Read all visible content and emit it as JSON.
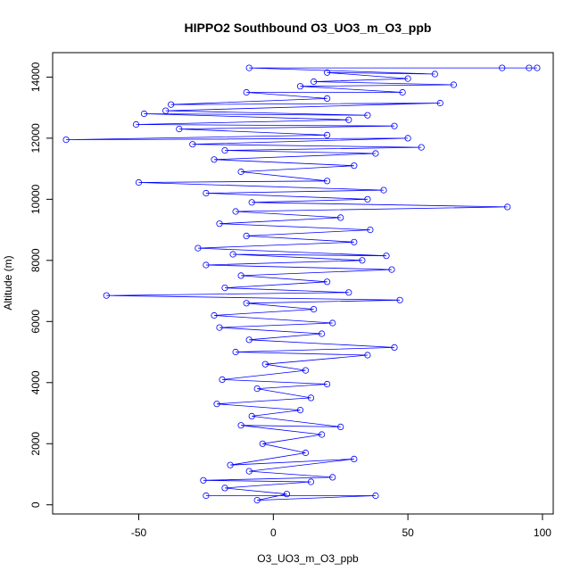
{
  "chart_data": {
    "type": "scatter",
    "title": "HIPPO2 Southbound O3_UO3_m_O3_ppb",
    "xlabel": "O3_UO3_m_O3_ppb",
    "ylabel": "Altitude (m)",
    "xlim": [
      -82,
      104
    ],
    "ylim": [
      -300,
      14800
    ],
    "xticks": [
      -50,
      0,
      50,
      100
    ],
    "yticks": [
      0,
      2000,
      4000,
      6000,
      8000,
      10000,
      12000,
      14000
    ],
    "grid": false,
    "legend": "none",
    "marker": "open-circle",
    "line": true,
    "color": "#0000ff",
    "series": [
      {
        "values": [
          [
            -25,
            300
          ],
          [
            38,
            300
          ],
          [
            -6,
            150
          ],
          [
            5,
            350
          ],
          [
            -18,
            550
          ],
          [
            14,
            750
          ],
          [
            -26,
            800
          ],
          [
            22,
            900
          ],
          [
            -9,
            1100
          ],
          [
            30,
            1500
          ],
          [
            -16,
            1300
          ],
          [
            12,
            1700
          ],
          [
            -4,
            2000
          ],
          [
            18,
            2300
          ],
          [
            -12,
            2600
          ],
          [
            25,
            2550
          ],
          [
            -8,
            2900
          ],
          [
            10,
            3100
          ],
          [
            -21,
            3300
          ],
          [
            14,
            3500
          ],
          [
            -6,
            3800
          ],
          [
            20,
            3950
          ],
          [
            -19,
            4100
          ],
          [
            12,
            4400
          ],
          [
            -3,
            4600
          ],
          [
            35,
            4900
          ],
          [
            -14,
            5000
          ],
          [
            45,
            5150
          ],
          [
            -9,
            5400
          ],
          [
            18,
            5600
          ],
          [
            -20,
            5800
          ],
          [
            22,
            5950
          ],
          [
            -22,
            6200
          ],
          [
            15,
            6400
          ],
          [
            -10,
            6600
          ],
          [
            47,
            6700
          ],
          [
            -62,
            6850
          ],
          [
            28,
            6950
          ],
          [
            -18,
            7100
          ],
          [
            20,
            7300
          ],
          [
            -12,
            7500
          ],
          [
            44,
            7700
          ],
          [
            -25,
            7850
          ],
          [
            33,
            8000
          ],
          [
            -15,
            8200
          ],
          [
            42,
            8150
          ],
          [
            -28,
            8400
          ],
          [
            30,
            8600
          ],
          [
            -10,
            8800
          ],
          [
            36,
            9000
          ],
          [
            -20,
            9200
          ],
          [
            25,
            9400
          ],
          [
            -14,
            9600
          ],
          [
            87,
            9750
          ],
          [
            -8,
            9900
          ],
          [
            35,
            10000
          ],
          [
            -25,
            10200
          ],
          [
            41,
            10300
          ],
          [
            -50,
            10550
          ],
          [
            20,
            10600
          ],
          [
            -12,
            10900
          ],
          [
            30,
            11100
          ],
          [
            -22,
            11300
          ],
          [
            38,
            11500
          ],
          [
            -18,
            11600
          ],
          [
            55,
            11700
          ],
          [
            -30,
            11800
          ],
          [
            50,
            12000
          ],
          [
            -77,
            11950
          ],
          [
            20,
            12100
          ],
          [
            -35,
            12300
          ],
          [
            45,
            12400
          ],
          [
            -51,
            12450
          ],
          [
            28,
            12600
          ],
          [
            -48,
            12800
          ],
          [
            35,
            12750
          ],
          [
            -40,
            12900
          ],
          [
            62,
            13150
          ],
          [
            -38,
            13100
          ],
          [
            20,
            13300
          ],
          [
            -10,
            13500
          ],
          [
            48,
            13500
          ],
          [
            10,
            13700
          ],
          [
            67,
            13750
          ],
          [
            15,
            13850
          ],
          [
            50,
            13950
          ],
          [
            20,
            14150
          ],
          [
            60,
            14100
          ],
          [
            -9,
            14300
          ],
          [
            95,
            14300
          ],
          [
            98,
            14300
          ],
          [
            85,
            14300
          ]
        ]
      }
    ]
  }
}
